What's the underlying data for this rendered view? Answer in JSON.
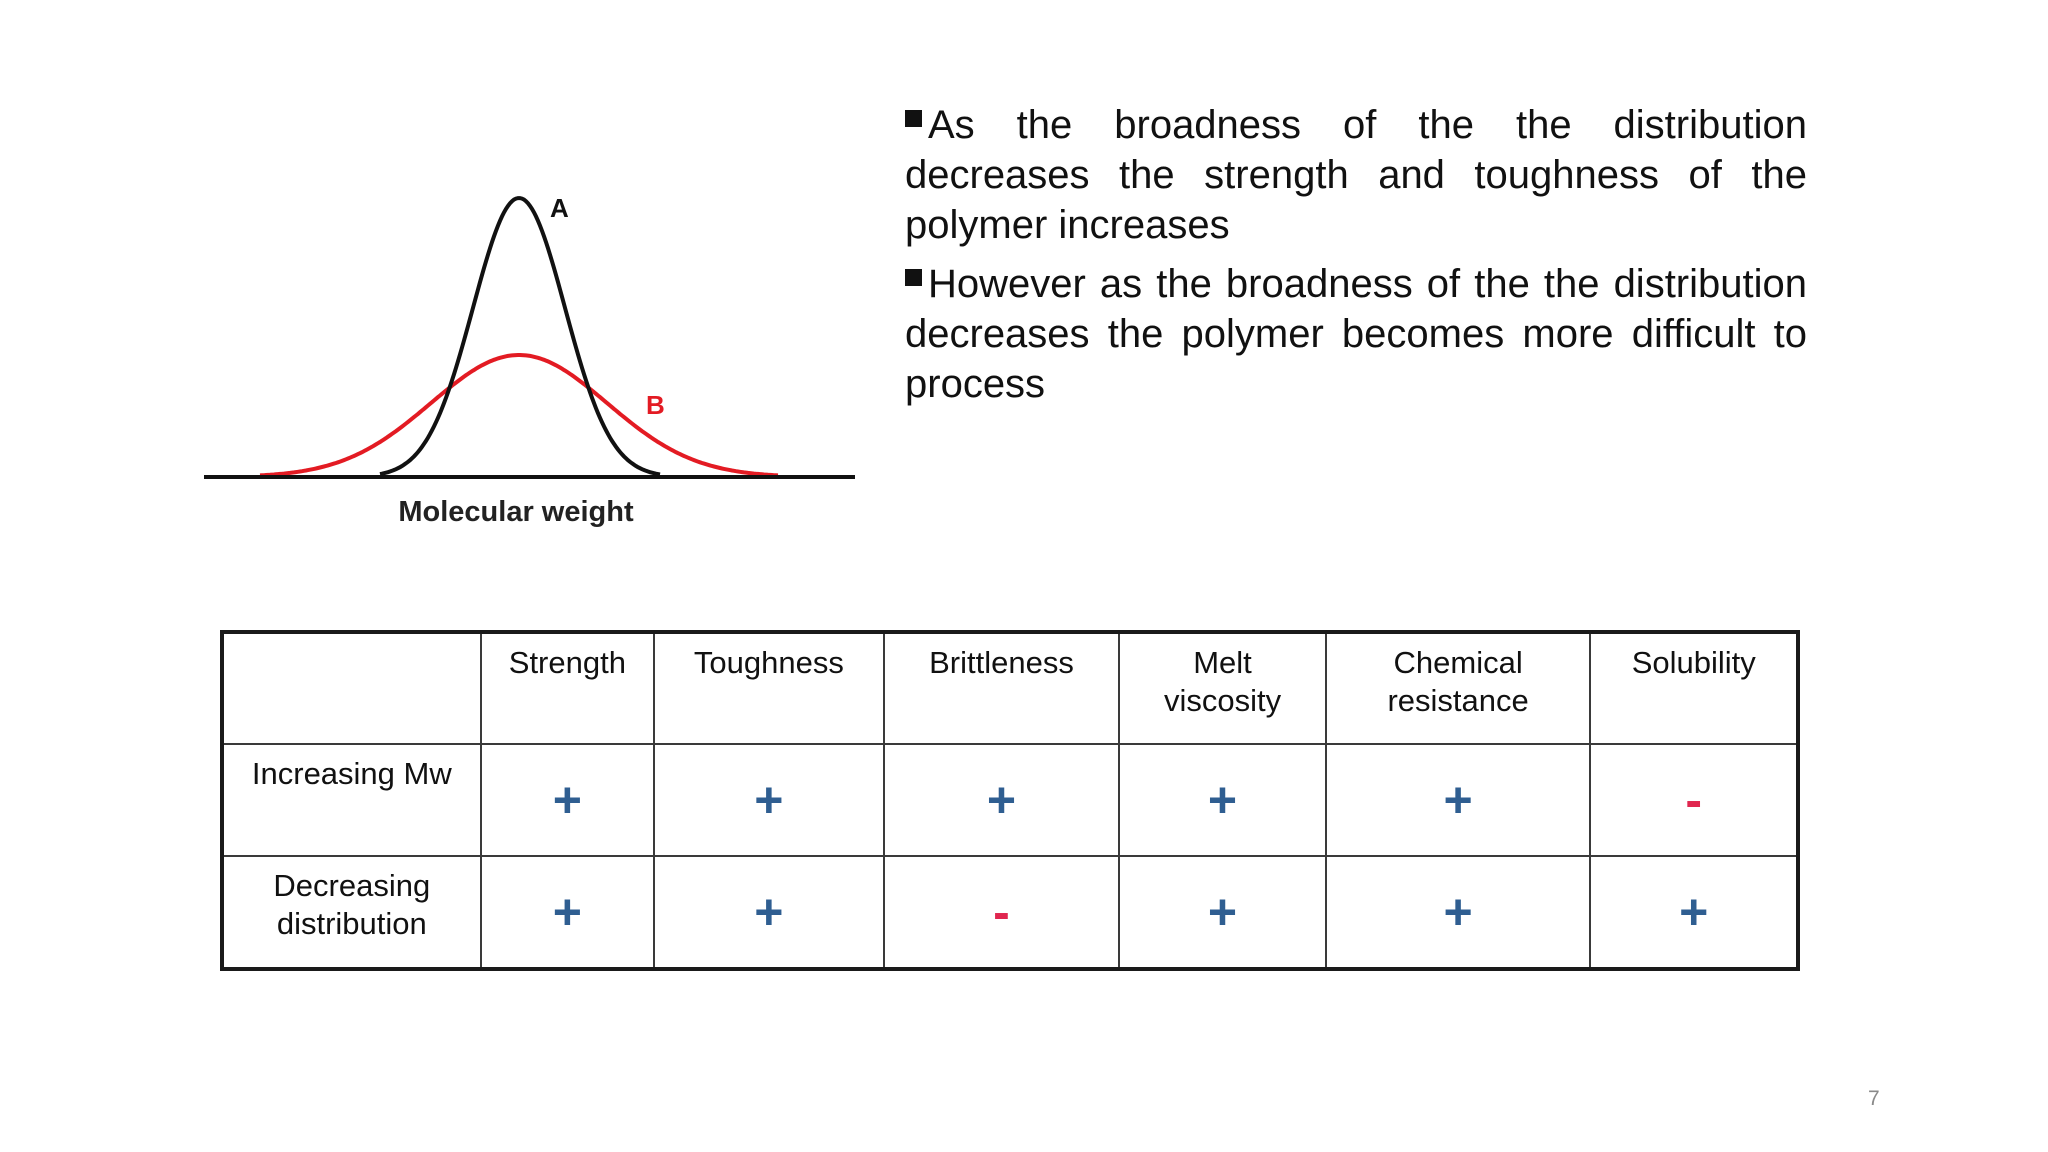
{
  "diagram": {
    "curve_a_label": "A",
    "curve_b_label": "B",
    "axis_label": "Molecular weight",
    "curve_a_color": "#111111",
    "curve_b_color": "#e31b23"
  },
  "bullets": [
    "As the broadness of the the distribution decreases the strength and toughness of the polymer increases",
    "However as the broadness of the the distribution decreases the polymer becomes more difficult to process"
  ],
  "table": {
    "headers": [
      "",
      "Strength",
      "Toughness",
      "Brittleness",
      "Melt viscosity",
      "Chemical resistance",
      "Solubility"
    ],
    "rows": [
      {
        "label": "Increasing Mw",
        "cells": [
          "+",
          "+",
          "+",
          "+",
          "+",
          "-"
        ]
      },
      {
        "label": "Decreasing distribution",
        "cells": [
          "+",
          "+",
          "-",
          "+",
          "+",
          "+"
        ]
      }
    ],
    "plus_color": "#2f5e91",
    "minus_color": "#e0264f"
  },
  "page_number": "7"
}
